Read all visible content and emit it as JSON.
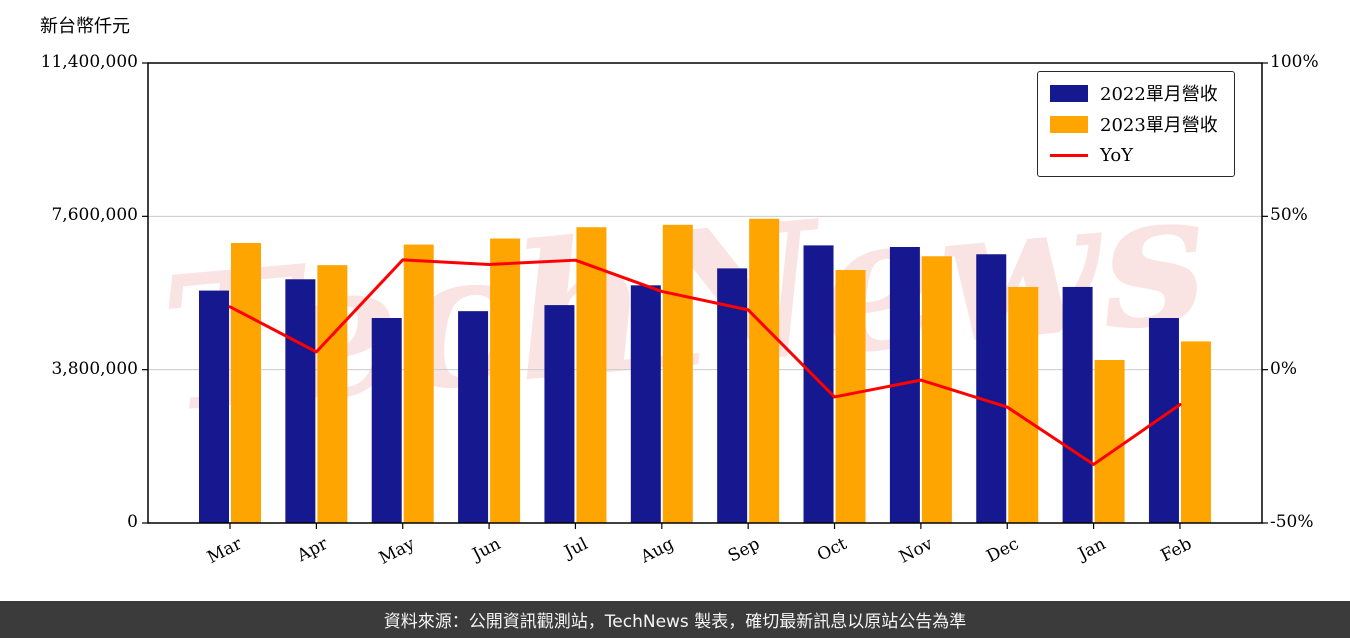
{
  "page": {
    "unit_label": "新台幣仟元",
    "watermark": "TechNews",
    "footer_note": "資料來源：公開資訊觀測站，TechNews 製表，確切最新訊息以原站公告為準"
  },
  "chart_data": {
    "type": "bar",
    "subtype": "grouped-bars-with-line",
    "title": "",
    "categories": [
      "Mar",
      "Apr",
      "May",
      "Jun",
      "Jul",
      "Aug",
      "Sep",
      "Oct",
      "Nov",
      "Dec",
      "Jan",
      "Feb"
    ],
    "series": [
      {
        "name": "2022單月營收",
        "type": "bar",
        "axis": "left",
        "color": "#15188f",
        "values": [
          5760000,
          6040000,
          5080000,
          5250000,
          5400000,
          5890000,
          6310000,
          6880000,
          6840000,
          6660000,
          5850000,
          5080000
        ]
      },
      {
        "name": "2023單月營收",
        "type": "bar",
        "axis": "left",
        "color": "#ffa502",
        "values": [
          6940000,
          6390000,
          6900000,
          7050000,
          7330000,
          7390000,
          7540000,
          6270000,
          6610000,
          5850000,
          4040000,
          4500000
        ]
      },
      {
        "name": "YoY",
        "type": "line",
        "axis": "right",
        "color": "#ff0000",
        "values": [
          20.5,
          5.8,
          35.8,
          34.3,
          35.7,
          25.5,
          19.5,
          -8.9,
          -3.4,
          -12.2,
          -30.9,
          -11.4
        ]
      }
    ],
    "left_axis": {
      "unit": "新台幣仟元",
      "min": 0,
      "max": 11400000,
      "ticks": [
        "0",
        "3,800,000",
        "7,600,000",
        "11,400,000"
      ],
      "tick_values": [
        0,
        3800000,
        7600000,
        11400000
      ],
      "grid_values": [
        3800000,
        7600000
      ]
    },
    "right_axis": {
      "unit": "%",
      "min": -50,
      "max": 100,
      "ticks": [
        "-50%",
        "0%",
        "50%",
        "100%"
      ],
      "tick_values": [
        -50,
        0,
        50,
        100
      ]
    },
    "grid": true,
    "legend_position": "top-right"
  }
}
